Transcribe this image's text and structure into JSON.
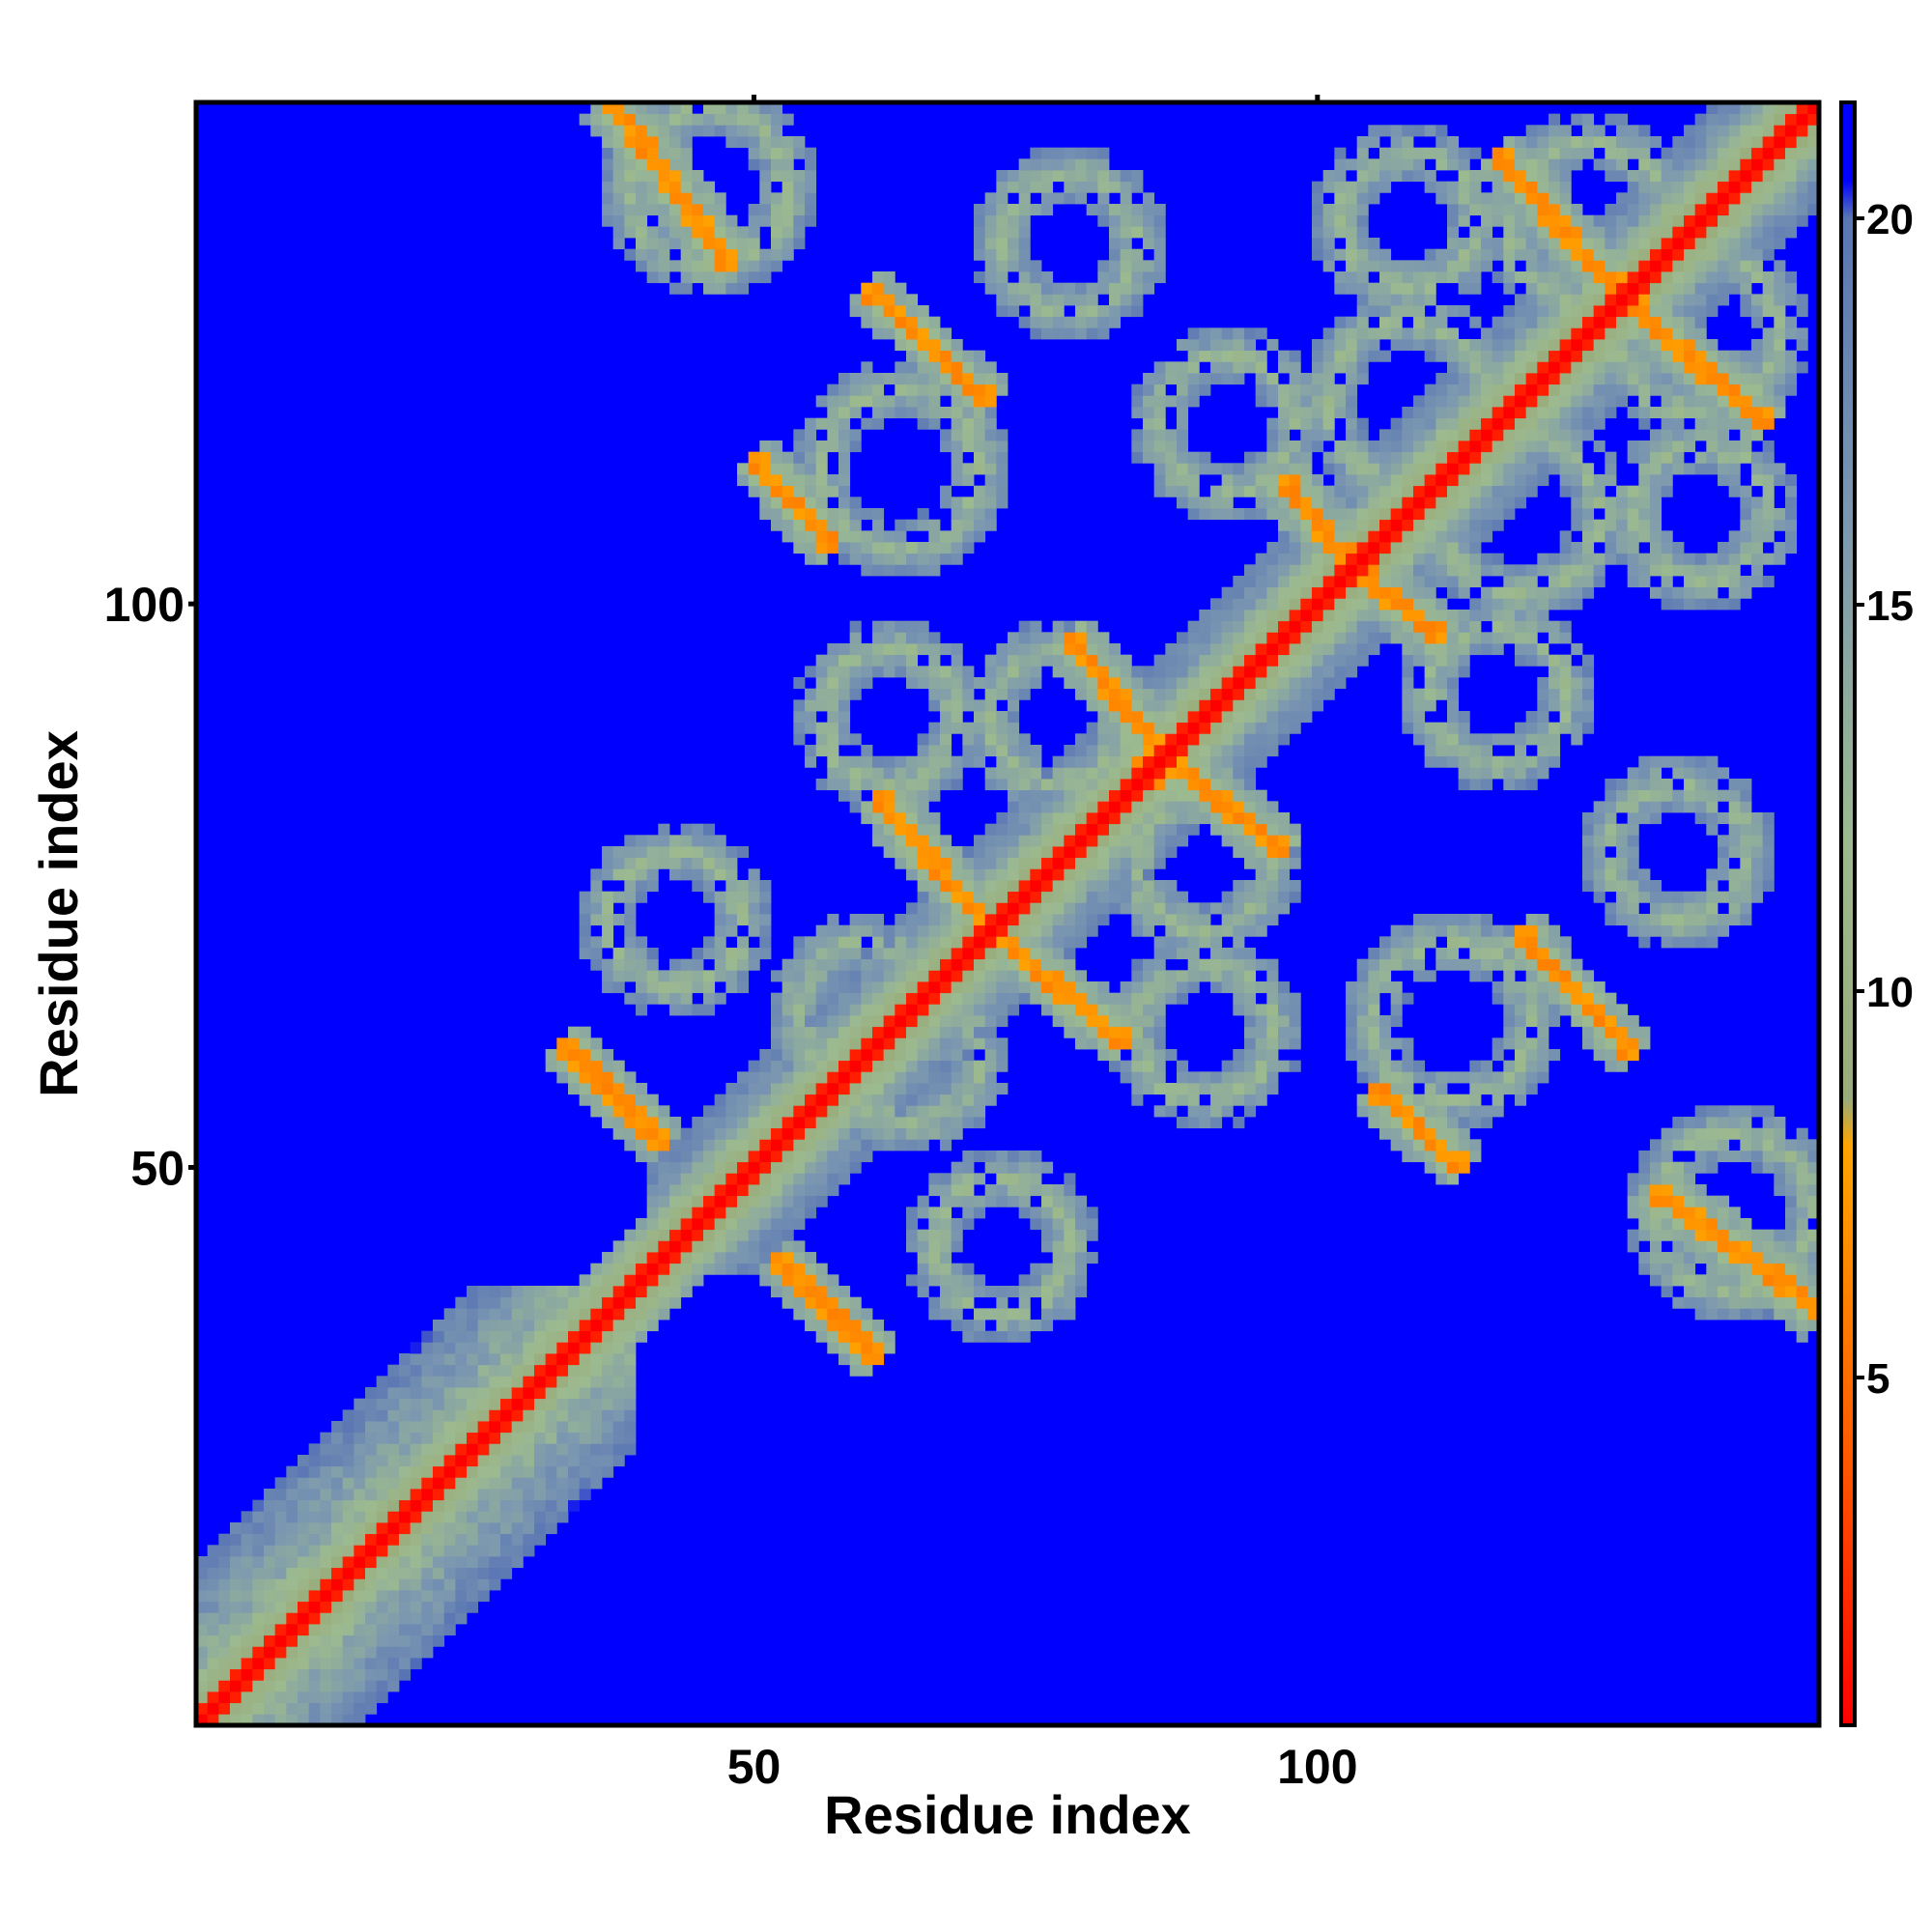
{
  "chart_data": {
    "type": "heatmap",
    "title": "",
    "xlabel": "Residue index",
    "ylabel": "Residue index",
    "xlim": [
      1,
      144
    ],
    "ylim": [
      1,
      144
    ],
    "x_ticks": [
      50,
      100
    ],
    "y_ticks": [
      50,
      100
    ],
    "colorbar": {
      "min": 0.5,
      "max": 21.5,
      "ticks": [
        5,
        10,
        15,
        20
      ],
      "stops": [
        {
          "value": 0.5,
          "color": "#ff0000"
        },
        {
          "value": 4.0,
          "color": "#ff5a00"
        },
        {
          "value": 8.0,
          "color": "#ffa500"
        },
        {
          "value": 8.6,
          "color": "#9aab7a"
        },
        {
          "value": 12.0,
          "color": "#9cba90"
        },
        {
          "value": 16.0,
          "color": "#7c98b0"
        },
        {
          "value": 20.0,
          "color": "#5a76b4"
        },
        {
          "value": 20.5,
          "color": "#0000ff"
        },
        {
          "value": 21.5,
          "color": "#0000ff"
        }
      ]
    },
    "background_value": 21,
    "background_color": "#0000ff",
    "grid": false,
    "legend": "right colorbar",
    "structure": {
      "diagonal_distance": 0.5,
      "cross_bands": [
        {
          "x": [
            13,
            28
          ],
          "y": [
            13,
            28
          ],
          "direction": "diagonal",
          "distance": 9
        },
        {
          "x": [
            34,
            41
          ],
          "y": [
            53,
            60
          ],
          "direction": "anti",
          "distance": 6
        },
        {
          "x": [
            52,
            59
          ],
          "y": [
            38,
            45
          ],
          "direction": "anti",
          "distance": 6
        },
        {
          "x": [
            38,
            47
          ],
          "y": [
            131,
            144
          ],
          "direction": "anti",
          "distance": 6
        },
        {
          "x": [
            51,
            56
          ],
          "y": [
            106,
            112
          ],
          "direction": "anti",
          "distance": 6
        },
        {
          "x": [
            61,
            70
          ],
          "y": [
            119,
            127
          ],
          "direction": "anti",
          "distance": 6
        },
        {
          "x": [
            62,
            70
          ],
          "y": [
            72,
            82
          ],
          "direction": "anti",
          "distance": 6
        },
        {
          "x": [
            75,
            85
          ],
          "y": [
            63,
            72
          ],
          "direction": "anti",
          "distance": 6
        },
        {
          "x": [
            79,
            85
          ],
          "y": [
            88,
            96
          ],
          "direction": "anti",
          "distance": 6
        },
        {
          "x": [
            85,
            92
          ],
          "y": [
            78,
            85
          ],
          "direction": "anti",
          "distance": 6
        },
        {
          "x": [
            98,
            103
          ],
          "y": [
            103,
            110
          ],
          "direction": "anti",
          "distance": 6
        },
        {
          "x": [
            103,
            110
          ],
          "y": [
            98,
            104
          ],
          "direction": "anti",
          "distance": 6
        },
        {
          "x": [
            104,
            114
          ],
          "y": [
            46,
            55
          ],
          "direction": "anti",
          "distance": 6
        },
        {
          "x": [
            117,
            126
          ],
          "y": [
            128,
            139
          ],
          "direction": "anti",
          "distance": 6
        },
        {
          "x": [
            128,
            138
          ],
          "y": [
            118,
            128
          ],
          "direction": "anti",
          "distance": 6
        },
        {
          "x": [
            121,
            127
          ],
          "y": [
            61,
            69
          ],
          "direction": "anti",
          "distance": 6
        },
        {
          "x": [
            136,
            143
          ],
          "y": [
            38,
            47
          ],
          "direction": "anti",
          "distance": 6
        }
      ],
      "contact_rings": [
        {
          "cx": 46,
          "cy": 137,
          "r": 7
        },
        {
          "cx": 63,
          "cy": 112,
          "r": 7
        },
        {
          "cx": 78,
          "cy": 132,
          "r": 6
        },
        {
          "cx": 92,
          "cy": 116,
          "r": 6
        },
        {
          "cx": 108,
          "cy": 134,
          "r": 6
        },
        {
          "cx": 124,
          "cy": 134,
          "r": 7
        },
        {
          "cx": 138,
          "cy": 114,
          "r": 7
        },
        {
          "cx": 108,
          "cy": 118,
          "r": 7
        },
        {
          "cx": 62,
          "cy": 90,
          "r": 6
        },
        {
          "cx": 77,
          "cy": 90,
          "r": 6
        },
        {
          "cx": 91,
          "cy": 74,
          "r": 6
        },
        {
          "cx": 108,
          "cy": 78,
          "r": 6
        },
        {
          "cx": 124,
          "cy": 92,
          "r": 6
        },
        {
          "cx": 138,
          "cy": 76,
          "r": 6
        },
        {
          "cx": 43,
          "cy": 72,
          "r": 6
        },
        {
          "cx": 60,
          "cy": 64,
          "r": 6
        },
        {
          "cx": 77,
          "cy": 60,
          "r": 6
        },
        {
          "cx": 108,
          "cy": 58,
          "r": 6
        },
        {
          "cx": 123,
          "cy": 60,
          "r": 6
        },
        {
          "cx": 133,
          "cy": 48,
          "r": 7
        }
      ]
    }
  }
}
